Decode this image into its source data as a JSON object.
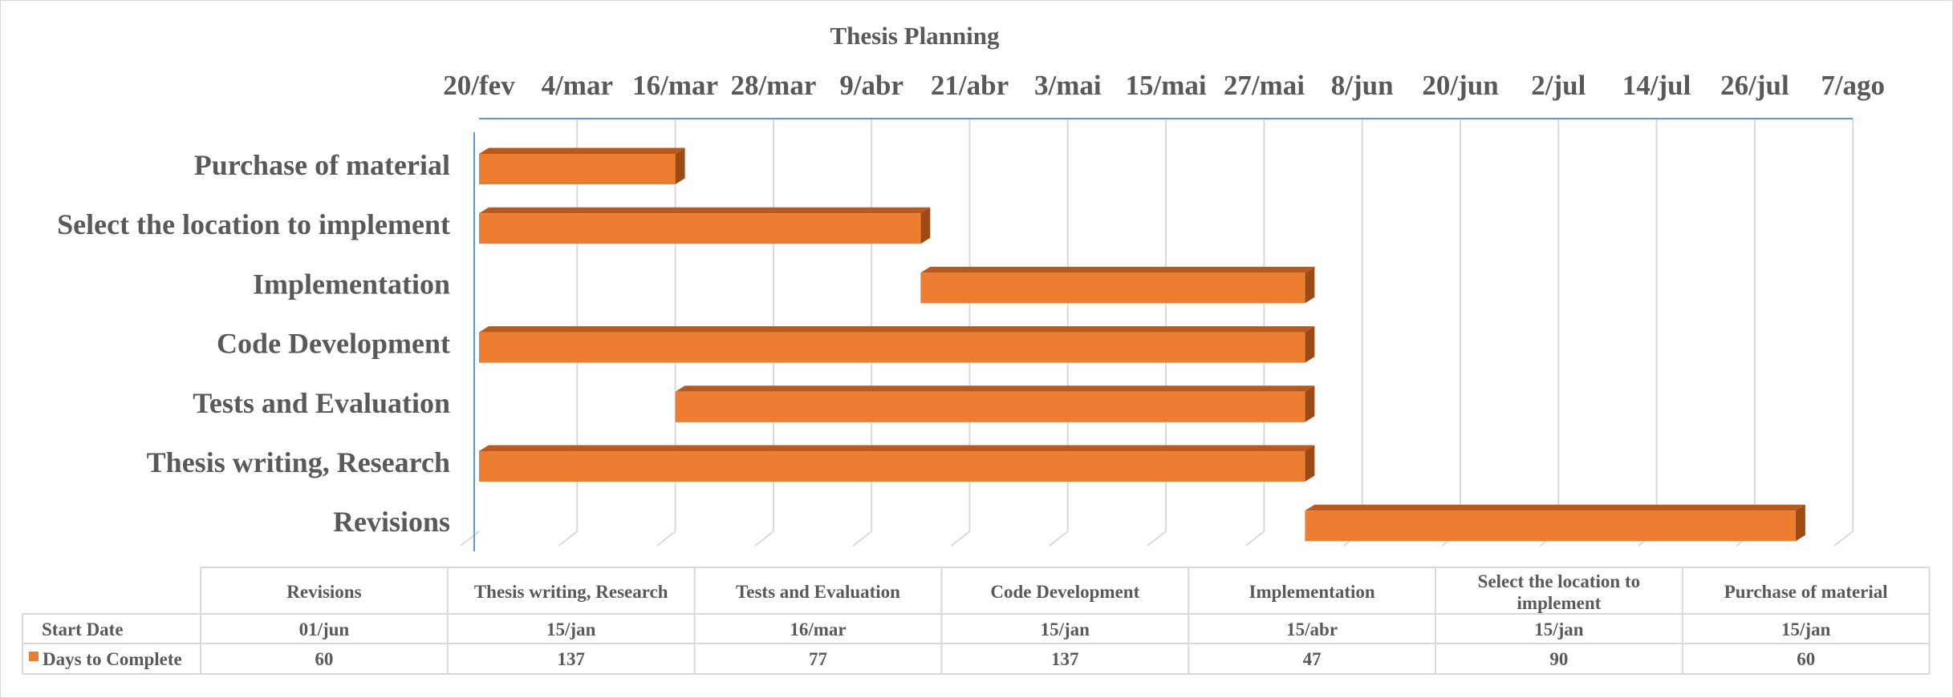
{
  "chart_data": {
    "type": "bar",
    "orientation": "horizontal",
    "stacked_offset": true,
    "title": "Thesis Planning",
    "x_axis": {
      "position": "top",
      "tick_labels": [
        "20/fev",
        "4/mar",
        "16/mar",
        "28/mar",
        "9/abr",
        "21/abr",
        "3/mai",
        "15/mai",
        "27/mai",
        "8/jun",
        "20/jun",
        "2/jul",
        "14/jul",
        "26/jul",
        "7/ago"
      ]
    },
    "categories_top_to_bottom": [
      "Purchase of material",
      "Select the location to implement",
      "Implementation",
      "Code Development",
      "Tests and Evaluation",
      "Thesis writing, Research",
      "Revisions"
    ],
    "series": [
      {
        "name": "Days to Complete",
        "color": "#ed7d31",
        "start_dates": [
          "15/jan",
          "15/jan",
          "15/abr",
          "15/jan",
          "16/mar",
          "15/jan",
          "01/jun"
        ],
        "values": [
          60,
          90,
          47,
          137,
          77,
          137,
          60
        ]
      }
    ],
    "data_table": {
      "columns": [
        "Revisions",
        "Thesis writing, Research",
        "Tests and Evaluation",
        "Code Development",
        "Implementation",
        "Select the location to implement",
        "Purchase of material"
      ],
      "rows": [
        {
          "label": "Start Date",
          "values": [
            "01/jun",
            "15/jan",
            "16/mar",
            "15/jan",
            "15/abr",
            "15/jan",
            "15/jan"
          ]
        },
        {
          "label": "Days to Complete",
          "values": [
            "60",
            "137",
            "77",
            "137",
            "47",
            "90",
            "60"
          ],
          "legend_key": true
        }
      ]
    }
  }
}
